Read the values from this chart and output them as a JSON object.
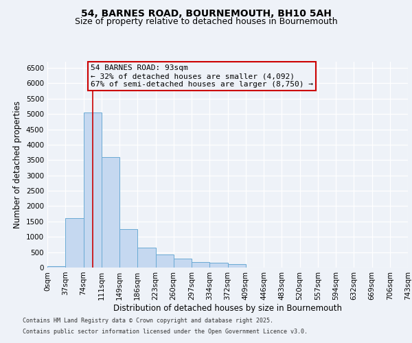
{
  "title_line1": "54, BARNES ROAD, BOURNEMOUTH, BH10 5AH",
  "title_line2": "Size of property relative to detached houses in Bournemouth",
  "xlabel": "Distribution of detached houses by size in Bournemouth",
  "ylabel": "Number of detached properties",
  "footnote1": "Contains HM Land Registry data © Crown copyright and database right 2025.",
  "footnote2": "Contains public sector information licensed under the Open Government Licence v3.0.",
  "bin_labels": [
    "0sqm",
    "37sqm",
    "74sqm",
    "111sqm",
    "149sqm",
    "186sqm",
    "223sqm",
    "260sqm",
    "297sqm",
    "334sqm",
    "372sqm",
    "409sqm",
    "446sqm",
    "483sqm",
    "520sqm",
    "557sqm",
    "594sqm",
    "632sqm",
    "669sqm",
    "706sqm",
    "743sqm"
  ],
  "bar_values": [
    50,
    1600,
    5050,
    3600,
    1250,
    650,
    420,
    280,
    170,
    150,
    120,
    0,
    0,
    0,
    0,
    0,
    0,
    0,
    0,
    0
  ],
  "bar_color": "#c5d8f0",
  "bar_edge_color": "#6aaad4",
  "ylim": [
    0,
    6700
  ],
  "yticks": [
    0,
    500,
    1000,
    1500,
    2000,
    2500,
    3000,
    3500,
    4000,
    4500,
    5000,
    5500,
    6000,
    6500
  ],
  "vline_x": 2.52,
  "vline_color": "#cc0000",
  "annotation_text": "54 BARNES ROAD: 93sqm\n← 32% of detached houses are smaller (4,092)\n67% of semi-detached houses are larger (8,750) →",
  "annotation_box_color": "#cc0000",
  "bg_color": "#eef2f8",
  "grid_color": "#ffffff",
  "title_fontsize": 10,
  "subtitle_fontsize": 9,
  "axis_label_fontsize": 8.5,
  "tick_fontsize": 7.5,
  "annot_fontsize": 8,
  "footnote_fontsize": 6
}
